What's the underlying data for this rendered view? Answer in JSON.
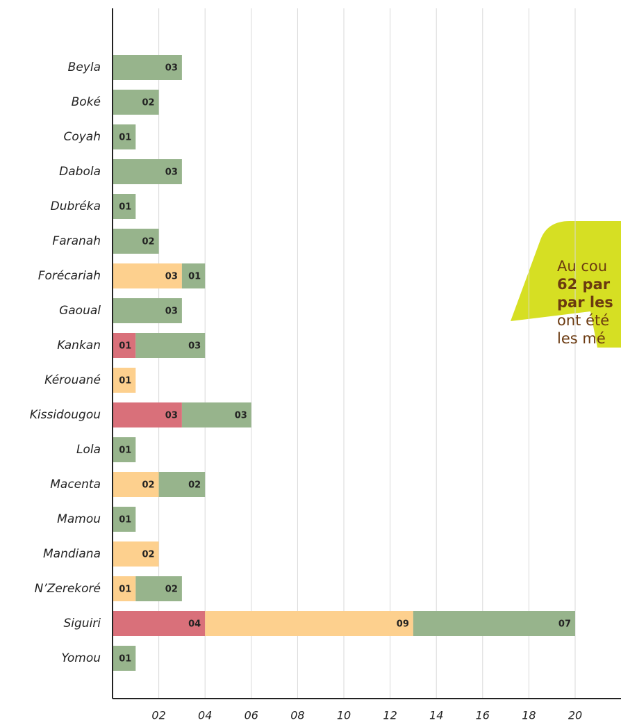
{
  "chart_data": {
    "type": "stacked-barh",
    "categories": [
      "Beyla",
      "Boké",
      "Coyah",
      "Dabola",
      "Dubréka",
      "Faranah",
      "Forécariah",
      "Gaoual",
      "Kankan",
      "Kérouané",
      "Kissidougou",
      "Lola",
      "Macenta",
      "Mamou",
      "Mandiana",
      "N’Zerekoré",
      "Siguiri",
      "Yomou"
    ],
    "series": [
      {
        "color": "#d9707a",
        "values": [
          null,
          null,
          null,
          null,
          null,
          null,
          null,
          null,
          1,
          null,
          3,
          null,
          null,
          null,
          null,
          null,
          4,
          null
        ],
        "value_labels": [
          null,
          null,
          null,
          null,
          null,
          null,
          null,
          null,
          "01",
          null,
          "03",
          null,
          null,
          null,
          null,
          null,
          "04",
          null
        ]
      },
      {
        "color": "#fdd08e",
        "values": [
          null,
          null,
          null,
          null,
          null,
          null,
          3,
          null,
          null,
          1,
          null,
          null,
          2,
          null,
          2,
          1,
          9,
          null
        ],
        "value_labels": [
          null,
          null,
          null,
          null,
          null,
          null,
          "03",
          null,
          null,
          "01",
          null,
          null,
          "02",
          null,
          "02",
          "01",
          "09",
          null
        ]
      },
      {
        "color": "#97b48c",
        "values": [
          3,
          2,
          1,
          3,
          1,
          2,
          1,
          3,
          3,
          null,
          3,
          1,
          2,
          1,
          null,
          2,
          7,
          1
        ],
        "value_labels": [
          "03",
          "02",
          "01",
          "03",
          "01",
          "02",
          "01",
          "03",
          "03",
          null,
          "03",
          "01",
          "02",
          "01",
          null,
          "02",
          "07",
          "01"
        ]
      }
    ],
    "xlim": [
      0,
      22
    ],
    "xticks": [
      {
        "value": 2,
        "label": "02"
      },
      {
        "value": 4,
        "label": "04"
      },
      {
        "value": 6,
        "label": "06"
      },
      {
        "value": 8,
        "label": "08"
      },
      {
        "value": 10,
        "label": "10"
      },
      {
        "value": 12,
        "label": "12"
      },
      {
        "value": 14,
        "label": "14"
      },
      {
        "value": 16,
        "label": "16"
      },
      {
        "value": 18,
        "label": "18"
      },
      {
        "value": 20,
        "label": "20"
      }
    ],
    "grid": true,
    "annotation": [
      "Au cou",
      "62 par",
      "par les",
      "ont été",
      "les mé"
    ]
  }
}
